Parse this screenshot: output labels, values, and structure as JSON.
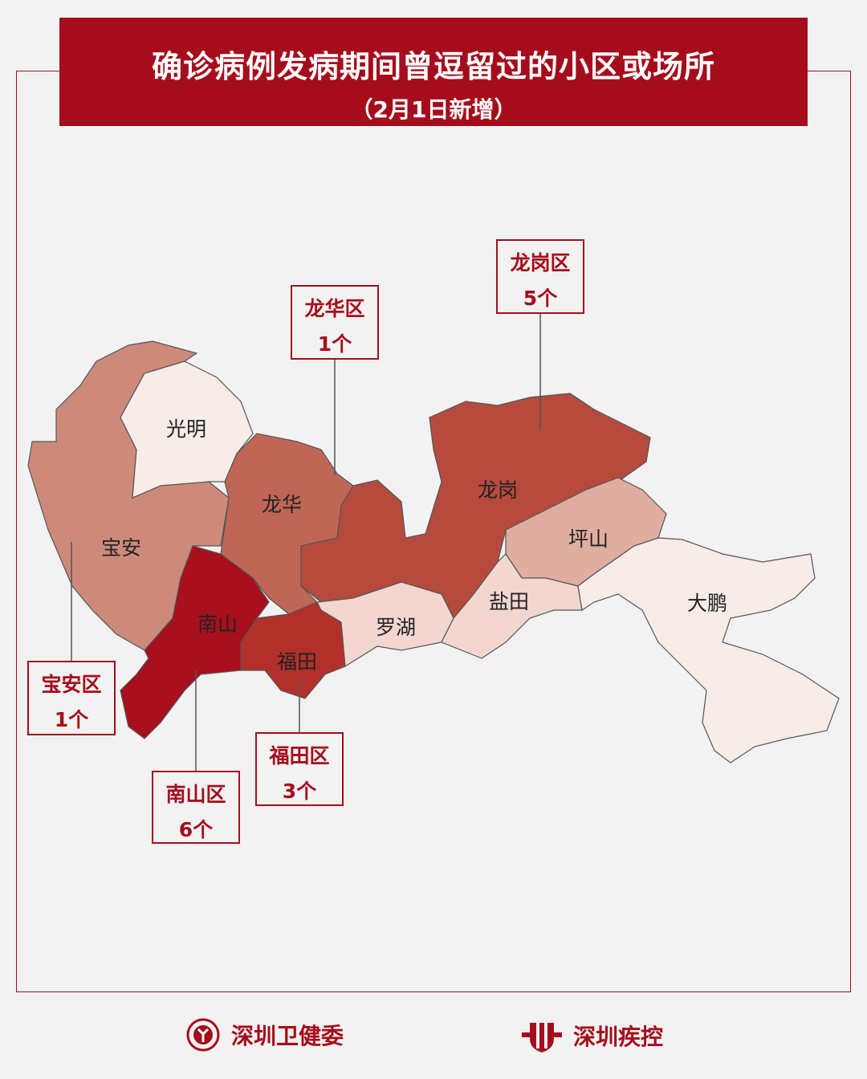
{
  "title": "确诊病例发病期间曾逗留过的小区或场所",
  "subtitle": "（2月1日新增）",
  "colors": {
    "brand": "#a50d1c",
    "background": "#f2f2f2"
  },
  "districts": [
    {
      "name": "光明",
      "fill": "#f7ece8"
    },
    {
      "name": "宝安",
      "fill": "#cd8a7b"
    },
    {
      "name": "龙华",
      "fill": "#c06656"
    },
    {
      "name": "龙岗",
      "fill": "#b54a3d"
    },
    {
      "name": "坪山",
      "fill": "#e0ada1"
    },
    {
      "name": "南山",
      "fill": "#a8101e"
    },
    {
      "name": "福田",
      "fill": "#b3302a"
    },
    {
      "name": "罗湖",
      "fill": "#f2d6cf"
    },
    {
      "name": "盐田",
      "fill": "#f2d6cf"
    },
    {
      "name": "大鹏",
      "fill": "#f7ece8"
    }
  ],
  "callouts": [
    {
      "district": "龙华区",
      "count": "1个"
    },
    {
      "district": "龙岗区",
      "count": "5个"
    },
    {
      "district": "宝安区",
      "count": "1个"
    },
    {
      "district": "南山区",
      "count": "6个"
    },
    {
      "district": "福田区",
      "count": "3个"
    }
  ],
  "footer": {
    "left": "深圳卫健委",
    "right": "深圳疾控",
    "left_icon": "shenzhen-health-commission-emblem",
    "right_icon": "shenzhen-cdc-logo"
  }
}
